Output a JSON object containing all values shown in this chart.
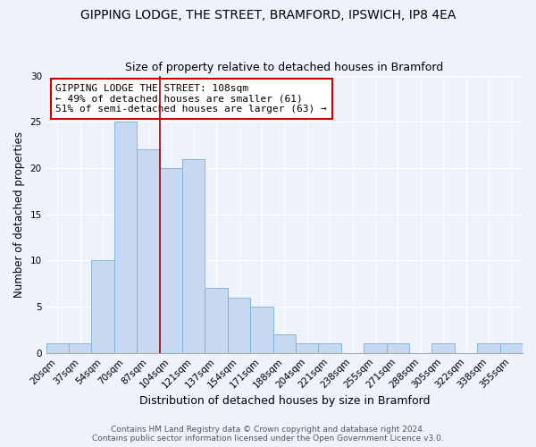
{
  "title": "GIPPING LODGE, THE STREET, BRAMFORD, IPSWICH, IP8 4EA",
  "subtitle": "Size of property relative to detached houses in Bramford",
  "xlabel": "Distribution of detached houses by size in Bramford",
  "ylabel": "Number of detached properties",
  "bin_labels": [
    "20sqm",
    "37sqm",
    "54sqm",
    "70sqm",
    "87sqm",
    "104sqm",
    "121sqm",
    "137sqm",
    "154sqm",
    "171sqm",
    "188sqm",
    "204sqm",
    "221sqm",
    "238sqm",
    "255sqm",
    "271sqm",
    "288sqm",
    "305sqm",
    "322sqm",
    "338sqm",
    "355sqm"
  ],
  "bin_counts": [
    1,
    1,
    10,
    25,
    22,
    20,
    21,
    7,
    6,
    5,
    2,
    1,
    1,
    0,
    1,
    1,
    0,
    1,
    0,
    1,
    1
  ],
  "bar_color": "#c6d9f0",
  "bar_edge_color": "#7bafd4",
  "vline_x": 4.5,
  "vline_color": "#aa0000",
  "annotation_text": "GIPPING LODGE THE STREET: 108sqm\n← 49% of detached houses are smaller (61)\n51% of semi-detached houses are larger (63) →",
  "annotation_box_color": "#ffffff",
  "annotation_box_edge": "#cc0000",
  "ylim": [
    0,
    30
  ],
  "yticks": [
    0,
    5,
    10,
    15,
    20,
    25,
    30
  ],
  "footer_line1": "Contains HM Land Registry data © Crown copyright and database right 2024.",
  "footer_line2": "Contains public sector information licensed under the Open Government Licence v3.0.",
  "title_fontsize": 10,
  "subtitle_fontsize": 9,
  "xlabel_fontsize": 9,
  "ylabel_fontsize": 8.5,
  "tick_fontsize": 7.5,
  "annotation_fontsize": 8,
  "footer_fontsize": 6.5,
  "background_color": "#eef2fb"
}
